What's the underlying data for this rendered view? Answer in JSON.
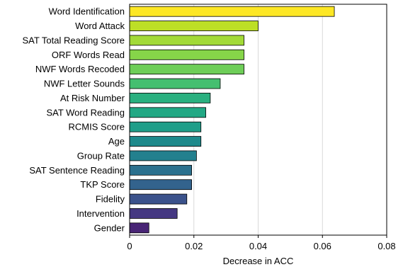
{
  "chart_data": {
    "type": "bar",
    "orientation": "horizontal",
    "categories": [
      "Word Identification",
      "Word Attack",
      "SAT Total Reading Score",
      "ORF Words Read",
      "NWF Words Recoded",
      "NWF Letter Sounds",
      "At Risk Number",
      "SAT Word Reading",
      "RCMIS Score",
      "Age",
      "Group Rate",
      "SAT Sentence Reading",
      "TKP Score",
      "Fidelity",
      "Intervention",
      "Gender"
    ],
    "values": [
      0.0637,
      0.04,
      0.0356,
      0.0356,
      0.0356,
      0.0282,
      0.0251,
      0.0237,
      0.0222,
      0.0222,
      0.0208,
      0.0193,
      0.0193,
      0.0178,
      0.0148,
      0.006
    ],
    "colors": [
      "#fde725",
      "#bddf26",
      "#a2da37",
      "#86d549",
      "#6ece58",
      "#44bf70",
      "#2ab07f",
      "#22a884",
      "#1f9e89",
      "#1e8a8c",
      "#23808e",
      "#2c718e",
      "#33638d",
      "#3b528b",
      "#453882",
      "#482475"
    ],
    "xlabel": "Decrease in ACC",
    "ylabel": "",
    "title": "",
    "xlim": [
      0,
      0.08
    ],
    "xticks": [
      0,
      0.02,
      0.04,
      0.06,
      0.08
    ],
    "xtick_labels": [
      "0",
      "0.02",
      "0.04",
      "0.06",
      "0.08"
    ],
    "grid": "vertical"
  }
}
